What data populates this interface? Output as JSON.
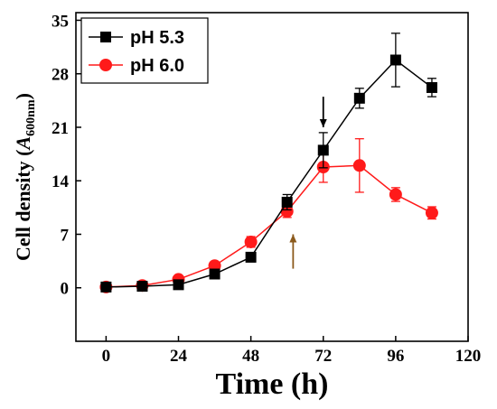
{
  "chart_data": {
    "type": "line",
    "xlabel": "Time (h)",
    "ylabel_prefix": "Cell density (",
    "ylabel_symbol": "A",
    "ylabel_subscript": "600nm",
    "ylabel_suffix": ")",
    "xlim": [
      -10,
      120
    ],
    "ylim": [
      -7,
      36
    ],
    "x_ticks": [
      0,
      24,
      48,
      72,
      96,
      120
    ],
    "y_ticks": [
      0,
      7,
      14,
      21,
      28,
      35
    ],
    "grid": false,
    "legend_position": "top-left",
    "series": [
      {
        "name": "pH 5.3",
        "color": "#000000",
        "marker": "square",
        "x": [
          0,
          12,
          24,
          36,
          48,
          60,
          72,
          84,
          96,
          108
        ],
        "y": [
          0.1,
          0.2,
          0.4,
          1.8,
          4.0,
          11.2,
          18.0,
          24.8,
          29.8,
          26.2
        ],
        "err": [
          0.3,
          0.3,
          0.3,
          0.5,
          0.6,
          1.0,
          2.3,
          1.3,
          3.5,
          1.2
        ]
      },
      {
        "name": "pH 6.0",
        "color": "#ff1a1a",
        "marker": "circle",
        "x": [
          0,
          12,
          24,
          36,
          48,
          60,
          72,
          84,
          96,
          108
        ],
        "y": [
          0.1,
          0.3,
          1.1,
          2.9,
          6.0,
          10.0,
          15.8,
          16.0,
          12.2,
          9.8
        ],
        "err": [
          0.3,
          0.3,
          0.4,
          0.5,
          0.7,
          0.8,
          2.0,
          3.5,
          0.9,
          0.8
        ]
      }
    ],
    "annotations": [
      {
        "type": "arrow",
        "color": "#000000",
        "direction": "down",
        "x": 72,
        "y_from": 25.0,
        "y_to": 21.0
      },
      {
        "type": "arrow",
        "color": "#8b5a1c",
        "direction": "up",
        "x": 62,
        "y_from": 2.5,
        "y_to": 7.0
      }
    ]
  }
}
